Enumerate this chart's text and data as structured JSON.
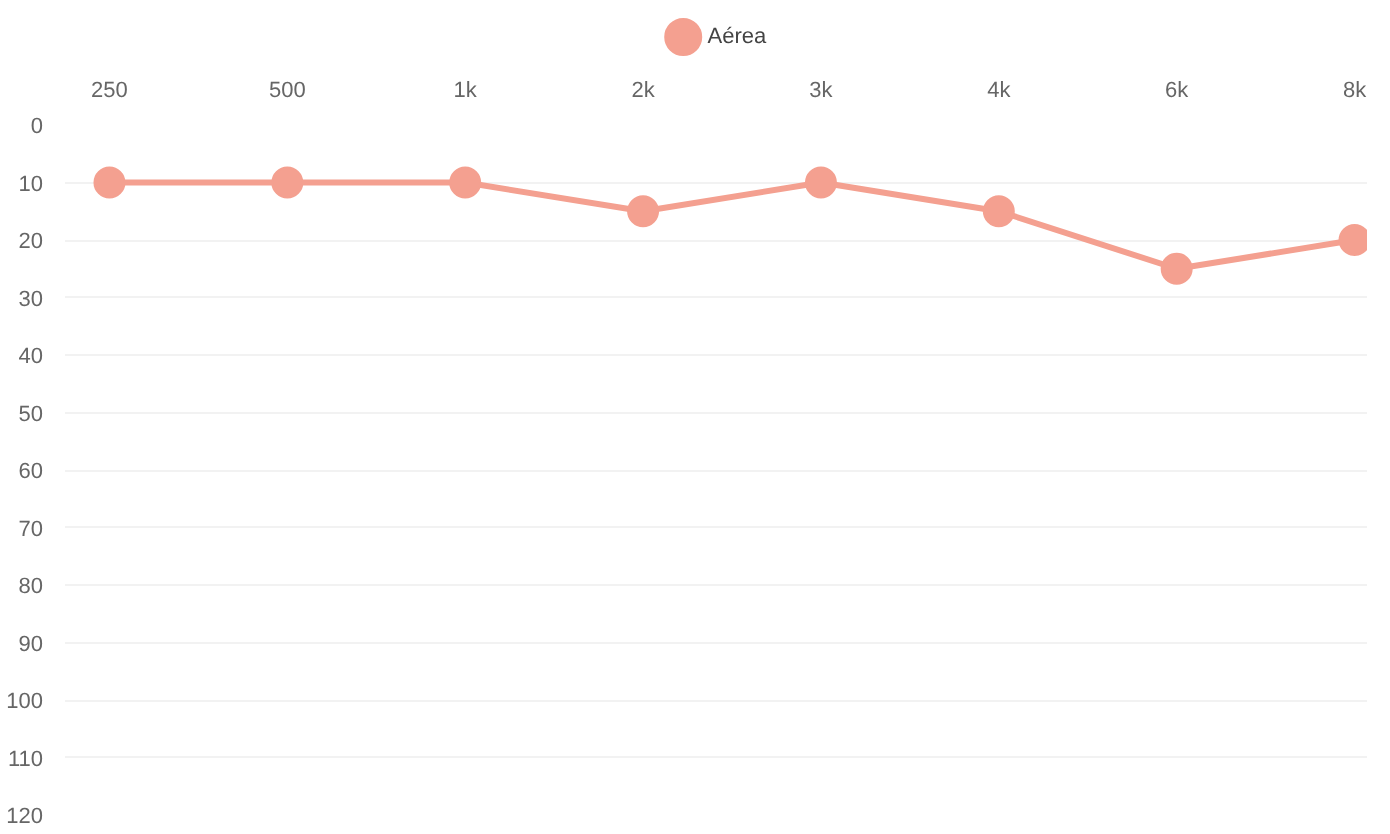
{
  "chart_data": {
    "type": "line",
    "categories": [
      "250",
      "500",
      "1k",
      "2k",
      "3k",
      "4k",
      "6k",
      "8k"
    ],
    "series": [
      {
        "name": "Aérea",
        "color": "#f4a090",
        "values": [
          10,
          10,
          10,
          15,
          10,
          15,
          25,
          20
        ]
      }
    ],
    "ylim": [
      120,
      0
    ],
    "yticks": [
      0,
      10,
      20,
      30,
      40,
      50,
      60,
      70,
      80,
      90,
      100,
      110,
      120
    ],
    "grid": "y",
    "legend": "top",
    "marker": "circle",
    "line_style": "solid"
  }
}
